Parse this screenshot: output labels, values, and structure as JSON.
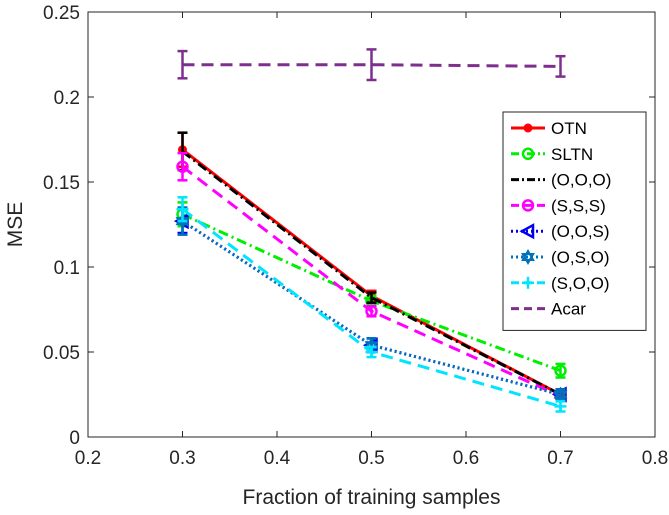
{
  "chart_data": {
    "type": "line",
    "xlabel": "Fraction of training samples",
    "ylabel": "MSE",
    "xlim": [
      0.2,
      0.8
    ],
    "ylim": [
      0,
      0.25
    ],
    "xticks": [
      "0.2",
      "0.3",
      "0.4",
      "0.5",
      "0.6",
      "0.7",
      "0.8"
    ],
    "yticks": [
      "0",
      "0.05",
      "0.1",
      "0.15",
      "0.2",
      "0.25"
    ],
    "grid": false,
    "legend_position": "right",
    "x": [
      0.3,
      0.5,
      0.7
    ],
    "series": [
      {
        "name": "OTN",
        "values": [
          0.169,
          0.083,
          0.025
        ],
        "err": [
          0.01,
          0.003,
          0.003
        ],
        "color": "#ff0000",
        "dash": "solid",
        "marker": "dot"
      },
      {
        "name": "SLTN",
        "values": [
          0.131,
          0.08,
          0.039
        ],
        "err": [
          0.007,
          0.003,
          0.004
        ],
        "color": "#00ee00",
        "dash": "dashdot",
        "marker": "circle"
      },
      {
        "name": "(O,O,O)",
        "values": [
          0.168,
          0.082,
          0.025
        ],
        "err": [
          0.011,
          0.003,
          0.003
        ],
        "color": "#000000",
        "dash": "dashdot",
        "marker": "none"
      },
      {
        "name": "(S,S,S)",
        "values": [
          0.159,
          0.074,
          0.024
        ],
        "err": [
          0.008,
          0.003,
          0.003
        ],
        "color": "#ff00ff",
        "dash": "dash",
        "marker": "circle"
      },
      {
        "name": "(O,O,S)",
        "values": [
          0.127,
          0.054,
          0.025
        ],
        "err": [
          0.007,
          0.004,
          0.003
        ],
        "color": "#0000ee",
        "dash": "dot",
        "marker": "triangle-left"
      },
      {
        "name": "(O,S,O)",
        "values": [
          0.127,
          0.054,
          0.025
        ],
        "err": [
          0.008,
          0.004,
          0.003
        ],
        "color": "#0072bd",
        "dash": "dot",
        "marker": "hexagram"
      },
      {
        "name": "(S,O,O)",
        "values": [
          0.134,
          0.05,
          0.018
        ],
        "err": [
          0.007,
          0.003,
          0.003
        ],
        "color": "#00e5ff",
        "dash": "dash",
        "marker": "plus"
      },
      {
        "name": "Acar",
        "values": [
          0.219,
          0.219,
          0.218
        ],
        "err": [
          0.008,
          0.009,
          0.006
        ],
        "color": "#7e2f8e",
        "dash": "dash",
        "marker": "none"
      }
    ]
  }
}
